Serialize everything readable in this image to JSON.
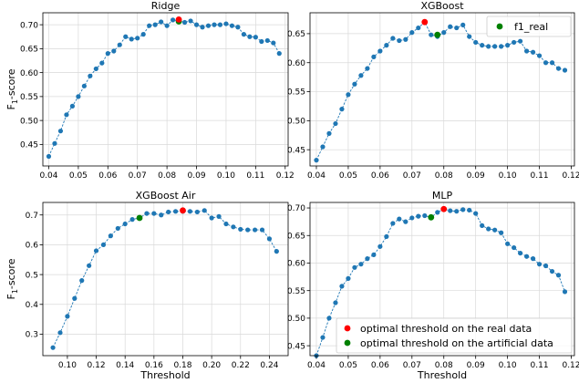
{
  "chart_data": [
    {
      "type": "scatter",
      "title": "Ridge",
      "xlabel": "",
      "ylabel": "F1-score",
      "ylabel_base": "F",
      "ylabel_sub": "1",
      "ylabel_rest": "-score",
      "xlim": [
        0.038,
        0.121
      ],
      "ylim": [
        0.405,
        0.725
      ],
      "xticks": [
        0.04,
        0.05,
        0.06,
        0.07,
        0.08,
        0.09,
        0.1,
        0.11,
        0.12
      ],
      "xtick_labels": [
        "0.04",
        "0.05",
        "0.06",
        "0.07",
        "0.08",
        "0.09",
        "0.10",
        "0.11",
        "0.12"
      ],
      "yticks": [
        0.45,
        0.5,
        0.55,
        0.6,
        0.65,
        0.7
      ],
      "ytick_labels": [
        "0.45",
        "0.50",
        "0.55",
        "0.60",
        "0.65",
        "0.70"
      ],
      "grid": true,
      "series": [
        {
          "x": [
            0.04,
            0.042,
            0.044,
            0.046,
            0.048,
            0.05,
            0.052,
            0.054,
            0.056,
            0.058,
            0.06,
            0.062,
            0.064,
            0.066,
            0.068,
            0.07,
            0.072,
            0.074,
            0.076,
            0.078,
            0.08,
            0.082,
            0.084,
            0.086,
            0.088,
            0.09,
            0.092,
            0.094,
            0.096,
            0.098,
            0.1,
            0.102,
            0.104,
            0.106,
            0.108,
            0.11,
            0.112,
            0.114,
            0.116,
            0.118
          ],
          "y": [
            0.425,
            0.452,
            0.478,
            0.512,
            0.53,
            0.55,
            0.572,
            0.593,
            0.608,
            0.62,
            0.64,
            0.645,
            0.658,
            0.675,
            0.67,
            0.672,
            0.68,
            0.698,
            0.7,
            0.706,
            0.698,
            0.71,
            0.708,
            0.705,
            0.708,
            0.7,
            0.695,
            0.698,
            0.7,
            0.7,
            0.702,
            0.698,
            0.695,
            0.68,
            0.675,
            0.674,
            0.665,
            0.667,
            0.662,
            0.64
          ],
          "color": "#1f77b4"
        }
      ],
      "markers": [
        {
          "x": 0.084,
          "y": 0.707,
          "color": "#008000"
        },
        {
          "x": 0.084,
          "y": 0.711,
          "color": "#ff0000"
        }
      ]
    },
    {
      "type": "scatter",
      "title": "XGBoost",
      "xlabel": "",
      "ylabel": "",
      "xlim": [
        0.038,
        0.121
      ],
      "ylim": [
        0.422,
        0.686
      ],
      "xticks": [
        0.04,
        0.05,
        0.06,
        0.07,
        0.08,
        0.09,
        0.1,
        0.11,
        0.12
      ],
      "xtick_labels": [
        "0.04",
        "0.05",
        "0.06",
        "0.07",
        "0.08",
        "0.09",
        "0.10",
        "0.11",
        "0.12"
      ],
      "yticks": [
        0.45,
        0.5,
        0.55,
        0.6,
        0.65
      ],
      "ytick_labels": [
        "0.45",
        "0.50",
        "0.55",
        "0.60",
        "0.65"
      ],
      "grid": true,
      "series": [
        {
          "x": [
            0.04,
            0.042,
            0.044,
            0.046,
            0.048,
            0.05,
            0.052,
            0.054,
            0.056,
            0.058,
            0.06,
            0.062,
            0.064,
            0.066,
            0.068,
            0.07,
            0.072,
            0.074,
            0.076,
            0.078,
            0.08,
            0.082,
            0.084,
            0.086,
            0.088,
            0.09,
            0.092,
            0.094,
            0.096,
            0.098,
            0.1,
            0.102,
            0.104,
            0.106,
            0.108,
            0.11,
            0.112,
            0.114,
            0.116,
            0.118
          ],
          "y": [
            0.432,
            0.455,
            0.478,
            0.495,
            0.52,
            0.545,
            0.563,
            0.578,
            0.59,
            0.61,
            0.62,
            0.63,
            0.642,
            0.638,
            0.64,
            0.652,
            0.66,
            0.67,
            0.648,
            0.645,
            0.652,
            0.662,
            0.66,
            0.665,
            0.645,
            0.635,
            0.63,
            0.628,
            0.628,
            0.628,
            0.63,
            0.635,
            0.637,
            0.62,
            0.618,
            0.612,
            0.6,
            0.6,
            0.59,
            0.587
          ],
          "color": "#1f77b4"
        }
      ],
      "markers": [
        {
          "x": 0.074,
          "y": 0.67,
          "color": "#ff0000"
        },
        {
          "x": 0.078,
          "y": 0.648,
          "color": "#008000"
        }
      ],
      "legend": {
        "label": "f1_real",
        "color": "#008000",
        "placement": "upper right"
      }
    },
    {
      "type": "scatter",
      "title": "XGBoost Air",
      "xlabel": "Threshold",
      "ylabel": "F1-score",
      "ylabel_base": "F",
      "ylabel_sub": "1",
      "ylabel_rest": "-score",
      "xlim": [
        0.083,
        0.253
      ],
      "ylim": [
        0.228,
        0.742
      ],
      "xticks": [
        0.1,
        0.12,
        0.14,
        0.16,
        0.18,
        0.2,
        0.22,
        0.24
      ],
      "xtick_labels": [
        "0.10",
        "0.12",
        "0.14",
        "0.16",
        "0.18",
        "0.20",
        "0.22",
        "0.24"
      ],
      "yticks": [
        0.3,
        0.4,
        0.5,
        0.6,
        0.7
      ],
      "ytick_labels": [
        "0.3",
        "0.4",
        "0.5",
        "0.6",
        "0.7"
      ],
      "grid": true,
      "series": [
        {
          "x": [
            0.09,
            0.095,
            0.1,
            0.105,
            0.11,
            0.115,
            0.12,
            0.125,
            0.13,
            0.135,
            0.14,
            0.145,
            0.15,
            0.155,
            0.16,
            0.165,
            0.17,
            0.175,
            0.18,
            0.185,
            0.19,
            0.195,
            0.2,
            0.205,
            0.21,
            0.215,
            0.22,
            0.225,
            0.23,
            0.235,
            0.24,
            0.245
          ],
          "y": [
            0.255,
            0.305,
            0.36,
            0.42,
            0.48,
            0.53,
            0.58,
            0.6,
            0.63,
            0.655,
            0.67,
            0.685,
            0.69,
            0.705,
            0.705,
            0.7,
            0.71,
            0.712,
            0.712,
            0.712,
            0.71,
            0.715,
            0.69,
            0.695,
            0.67,
            0.66,
            0.652,
            0.65,
            0.65,
            0.65,
            0.62,
            0.578
          ],
          "color": "#1f77b4"
        }
      ],
      "markers": [
        {
          "x": 0.15,
          "y": 0.69,
          "color": "#008000"
        },
        {
          "x": 0.18,
          "y": 0.715,
          "color": "#ff0000"
        }
      ]
    },
    {
      "type": "scatter",
      "title": "MLP",
      "xlabel": "Threshold",
      "ylabel": "",
      "xlim": [
        0.038,
        0.121
      ],
      "ylim": [
        0.432,
        0.71
      ],
      "xticks": [
        0.04,
        0.05,
        0.06,
        0.07,
        0.08,
        0.09,
        0.1,
        0.11,
        0.12
      ],
      "xtick_labels": [
        "0.04",
        "0.05",
        "0.06",
        "0.07",
        "0.08",
        "0.09",
        "0.10",
        "0.11",
        "0.12"
      ],
      "yticks": [
        0.45,
        0.5,
        0.55,
        0.6,
        0.65,
        0.7
      ],
      "ytick_labels": [
        "0.45",
        "0.50",
        "0.55",
        "0.60",
        "0.65",
        "0.70"
      ],
      "grid": true,
      "series": [
        {
          "x": [
            0.04,
            0.042,
            0.044,
            0.046,
            0.048,
            0.05,
            0.052,
            0.054,
            0.056,
            0.058,
            0.06,
            0.062,
            0.064,
            0.066,
            0.068,
            0.07,
            0.072,
            0.074,
            0.076,
            0.078,
            0.08,
            0.082,
            0.084,
            0.086,
            0.088,
            0.09,
            0.092,
            0.094,
            0.096,
            0.098,
            0.1,
            0.102,
            0.104,
            0.106,
            0.108,
            0.11,
            0.112,
            0.114,
            0.116,
            0.118
          ],
          "y": [
            0.432,
            0.465,
            0.5,
            0.528,
            0.558,
            0.572,
            0.592,
            0.598,
            0.608,
            0.615,
            0.63,
            0.648,
            0.672,
            0.68,
            0.675,
            0.682,
            0.685,
            0.686,
            0.683,
            0.692,
            0.698,
            0.695,
            0.694,
            0.697,
            0.696,
            0.69,
            0.668,
            0.662,
            0.66,
            0.655,
            0.635,
            0.628,
            0.618,
            0.612,
            0.608,
            0.598,
            0.595,
            0.585,
            0.578,
            0.548
          ],
          "color": "#1f77b4"
        }
      ],
      "markers": [
        {
          "x": 0.076,
          "y": 0.683,
          "color": "#008000"
        },
        {
          "x": 0.08,
          "y": 0.698,
          "color": "#ff0000"
        }
      ],
      "legend": {
        "placement": "lower right",
        "entries": [
          {
            "label": "optimal threshold on the real data",
            "color": "#ff0000"
          },
          {
            "label": "optimal threshold on the artificial data",
            "color": "#008000"
          }
        ]
      }
    }
  ]
}
